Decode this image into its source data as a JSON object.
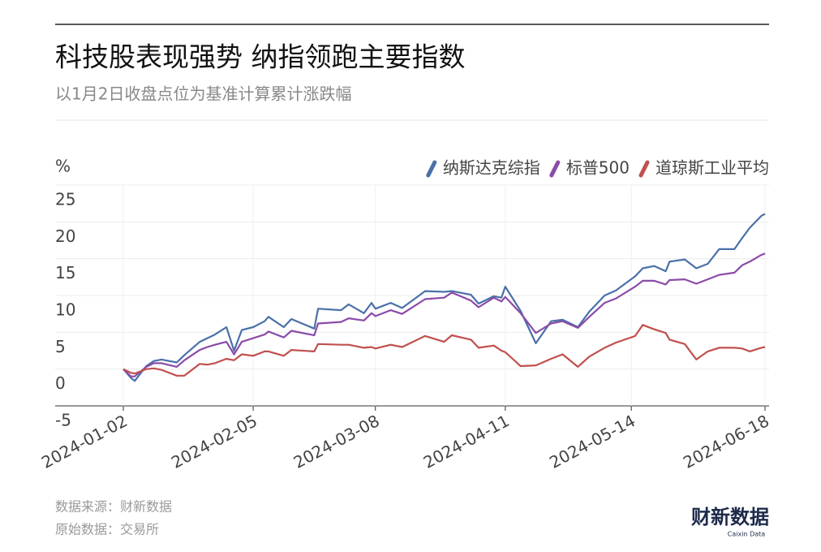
{
  "chart_data": {
    "type": "line",
    "title": "科技股表现强势 纳指领跑主要指数",
    "subtitle": "以1月2日收盘点位为基准计算累计涨跌幅",
    "y_label": "%",
    "source": "数据来源：财新数据",
    "raw_source": "原始数据：交易所",
    "logo": "财新数据",
    "logo_sub": "Caixin Data",
    "x": [
      "2024-01-02",
      "2024-01-04",
      "2024-01-05",
      "2024-01-08",
      "2024-01-10",
      "2024-01-12",
      "2024-01-16",
      "2024-01-18",
      "2024-01-22",
      "2024-01-24",
      "2024-01-26",
      "2024-01-29",
      "2024-01-31",
      "2024-02-02",
      "2024-02-05",
      "2024-02-08",
      "2024-02-09",
      "2024-02-13",
      "2024-02-15",
      "2024-02-21",
      "2024-02-22",
      "2024-02-28",
      "2024-03-01",
      "2024-03-05",
      "2024-03-07",
      "2024-03-08",
      "2024-03-12",
      "2024-03-15",
      "2024-03-21",
      "2024-03-26",
      "2024-03-28",
      "2024-04-02",
      "2024-04-04",
      "2024-04-08",
      "2024-04-10",
      "2024-04-11",
      "2024-04-15",
      "2024-04-19",
      "2024-04-23",
      "2024-04-26",
      "2024-04-30",
      "2024-05-03",
      "2024-05-07",
      "2024-05-10",
      "2024-05-15",
      "2024-05-17",
      "2024-05-20",
      "2024-05-23",
      "2024-05-24",
      "2024-05-28",
      "2024-05-31",
      "2024-06-03",
      "2024-06-06",
      "2024-06-10",
      "2024-06-12",
      "2024-06-14",
      "2024-06-17",
      "2024-06-18"
    ],
    "series": [
      {
        "name": "纳斯达克综指",
        "color": "#4a70a8",
        "values": [
          0,
          -1.2,
          -1.6,
          0.4,
          1.1,
          1.3,
          0.9,
          1.9,
          3.7,
          4.2,
          4.7,
          5.7,
          2.5,
          5.3,
          5.7,
          6.5,
          7.1,
          5.7,
          6.8,
          5.5,
          8.2,
          8.0,
          8.8,
          7.6,
          9.0,
          8.2,
          9.0,
          8.3,
          10.6,
          10.5,
          10.6,
          10.1,
          8.9,
          9.9,
          9.7,
          11.2,
          7.9,
          3.5,
          6.5,
          6.7,
          5.7,
          7.8,
          10.0,
          10.7,
          12.6,
          13.7,
          14.0,
          13.3,
          14.6,
          14.9,
          13.7,
          14.3,
          16.3,
          16.3,
          17.8,
          19.2,
          20.8,
          21.1
        ]
      },
      {
        "name": "标普500",
        "color": "#8b4ba8",
        "values": [
          0,
          -1.0,
          -1.0,
          0.3,
          0.8,
          0.8,
          0.3,
          1.2,
          2.6,
          3.0,
          3.3,
          3.7,
          2.0,
          3.7,
          4.2,
          4.7,
          5.1,
          4.3,
          5.2,
          4.6,
          6.2,
          6.4,
          6.9,
          6.6,
          7.6,
          7.2,
          8.0,
          7.5,
          9.5,
          9.7,
          10.4,
          9.3,
          8.4,
          9.7,
          9.2,
          9.8,
          7.6,
          4.9,
          6.2,
          6.5,
          5.6,
          7.1,
          9.0,
          9.6,
          11.2,
          12.0,
          12.0,
          11.5,
          12.1,
          12.2,
          11.6,
          12.2,
          12.8,
          13.1,
          14.1,
          14.6,
          15.5,
          15.7
        ]
      },
      {
        "name": "道琼斯工业平均",
        "color": "#c0504d",
        "values": [
          0,
          -0.5,
          -0.6,
          0,
          0.1,
          -0.1,
          -0.9,
          -0.9,
          0.7,
          0.6,
          0.8,
          1.4,
          1.2,
          2.0,
          1.8,
          2.4,
          2.4,
          1.8,
          2.6,
          2.4,
          3.4,
          3.3,
          3.3,
          2.9,
          3.0,
          2.8,
          3.3,
          3.0,
          4.5,
          3.7,
          4.6,
          4.0,
          2.9,
          3.2,
          2.5,
          2.3,
          0.4,
          0.5,
          1.4,
          2.0,
          0.3,
          1.7,
          2.9,
          3.6,
          4.5,
          6.0,
          5.4,
          4.9,
          4.0,
          3.4,
          1.3,
          2.4,
          2.9,
          2.9,
          2.8,
          2.4,
          2.9,
          3.0
        ]
      }
    ],
    "xlim": [
      "2024-01-02",
      "2024-06-18"
    ],
    "xticks": [
      "2024-01-02",
      "2024-02-05",
      "2024-03-08",
      "2024-04-11",
      "2024-05-14",
      "2024-06-18"
    ],
    "ylim": [
      -5,
      25
    ],
    "yticks": [
      -5,
      0,
      5,
      10,
      15,
      20,
      25
    ],
    "grid": true
  }
}
